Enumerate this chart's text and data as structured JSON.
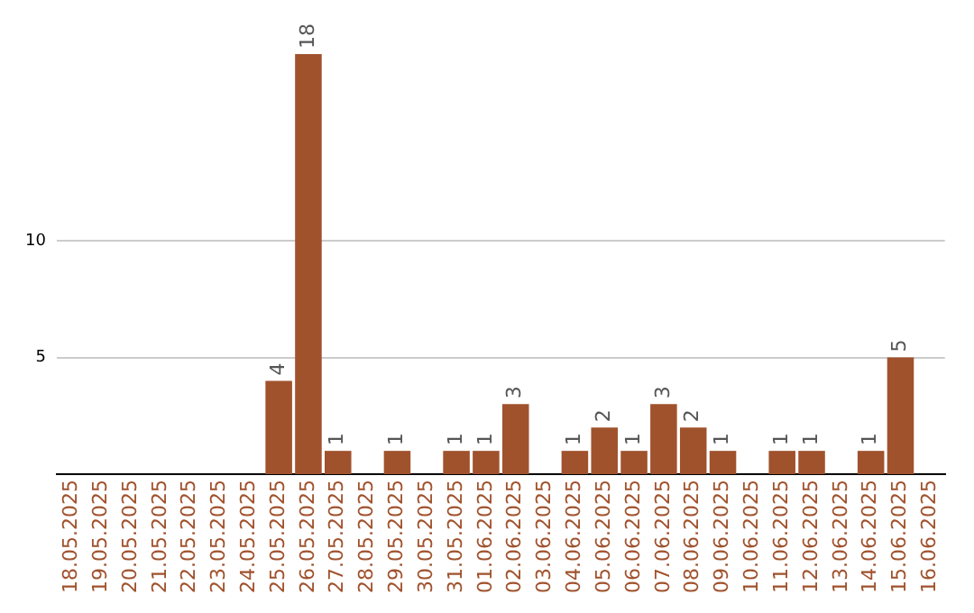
{
  "chart_data": {
    "type": "bar",
    "categories": [
      "18.05.2025",
      "19.05.2025",
      "20.05.2025",
      "21.05.2025",
      "22.05.2025",
      "23.05.2025",
      "24.05.2025",
      "25.05.2025",
      "26.05.2025",
      "27.05.2025",
      "28.05.2025",
      "29.05.2025",
      "30.05.2025",
      "31.05.2025",
      "01.06.2025",
      "02.06.2025",
      "03.06.2025",
      "04.06.2025",
      "05.06.2025",
      "06.06.2025",
      "07.06.2025",
      "08.06.2025",
      "09.06.2025",
      "10.06.2025",
      "11.06.2025",
      "12.06.2025",
      "13.06.2025",
      "14.06.2025",
      "15.06.2025",
      "16.06.2025"
    ],
    "values": [
      0,
      0,
      0,
      0,
      0,
      0,
      0,
      4,
      18,
      1,
      0,
      1,
      0,
      1,
      1,
      3,
      0,
      1,
      2,
      1,
      3,
      2,
      1,
      0,
      1,
      1,
      0,
      1,
      5,
      0
    ],
    "value_labels": [
      null,
      null,
      null,
      null,
      null,
      null,
      null,
      "4",
      "18",
      "1",
      null,
      "1",
      null,
      "1",
      "1",
      "3",
      null,
      "1",
      "2",
      "1",
      "3",
      "2",
      "1",
      null,
      "1",
      "1",
      null,
      "1",
      "5",
      null
    ],
    "color": "#a0522d",
    "ylim": [
      0,
      18
    ],
    "yticks": [
      5,
      10
    ],
    "grid": "y",
    "legend": false
  }
}
